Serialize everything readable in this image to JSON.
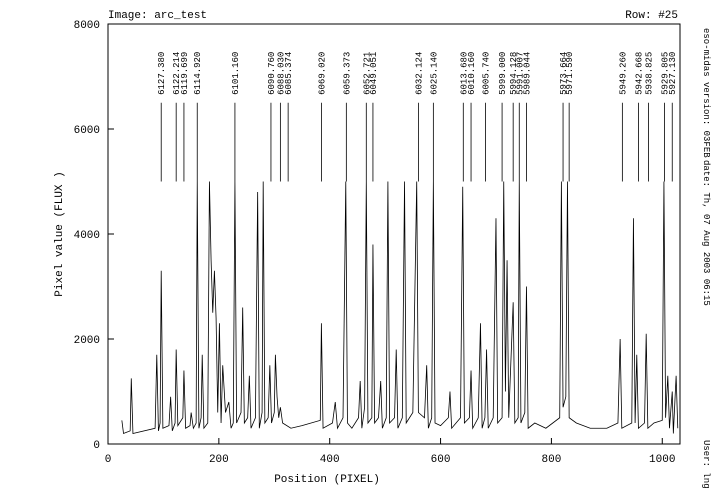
{
  "header": {
    "image": "Image: arc_test",
    "row": "Row: #25",
    "version": "eso-midas version: 03FEB",
    "date": "date: Th, 07 Aug 2003 06:15",
    "user": "User: lng"
  },
  "chart_data": {
    "type": "line",
    "x_label": "Position (PIXEL)",
    "y_label": "Pixel value (FLUX )",
    "xlim": [
      0,
      1032
    ],
    "xticks": [
      0,
      200,
      400,
      600,
      800,
      1000
    ],
    "ylim": [
      0,
      8000
    ],
    "yticks": [
      0,
      2000,
      4000,
      6000,
      8000
    ],
    "color": "#000000",
    "x": [
      25,
      28,
      40,
      42,
      45,
      85,
      88,
      91,
      94,
      96,
      99,
      110,
      113,
      116,
      121,
      123,
      126,
      135,
      137,
      140,
      148,
      150,
      154,
      159,
      161,
      164,
      168,
      170,
      173,
      180,
      183,
      186,
      189,
      192,
      195,
      198,
      201,
      204,
      207,
      212,
      218,
      222,
      226,
      229,
      232,
      240,
      243,
      246,
      252,
      255,
      258,
      266,
      270,
      273,
      278,
      280,
      283,
      289,
      292,
      295,
      300,
      302,
      305,
      308,
      311,
      315,
      330,
      350,
      383,
      385,
      388,
      405,
      410,
      414,
      424,
      429,
      432,
      440,
      452,
      455,
      458,
      463,
      466,
      469,
      476,
      478,
      481,
      488,
      492,
      495,
      502,
      505,
      508,
      517,
      520,
      523,
      531,
      535,
      538,
      550,
      557,
      560,
      571,
      575,
      578,
      584,
      587,
      590,
      600,
      614,
      617,
      620,
      636,
      640,
      643,
      652,
      655,
      658,
      668,
      672,
      675,
      680,
      683,
      686,
      695,
      700,
      703,
      711,
      714,
      717,
      720,
      723,
      731,
      734,
      740,
      742,
      745,
      752,
      755,
      758,
      770,
      790,
      815,
      818,
      821,
      826,
      829,
      832,
      845,
      870,
      900,
      920,
      924,
      927,
      945,
      948,
      951,
      954,
      957,
      968,
      971,
      974,
      985,
      1000,
      1003,
      1006,
      1010,
      1013,
      1018,
      1020,
      1025,
      1028
    ],
    "values": [
      450,
      200,
      250,
      1250,
      200,
      300,
      1700,
      250,
      400,
      3300,
      300,
      350,
      900,
      250,
      400,
      1800,
      350,
      500,
      1400,
      300,
      350,
      600,
      300,
      400,
      5000,
      300,
      500,
      1700,
      300,
      400,
      5000,
      3500,
      2500,
      3300,
      2400,
      600,
      2300,
      400,
      1500,
      600,
      800,
      300,
      400,
      5000,
      400,
      600,
      2600,
      400,
      500,
      1300,
      300,
      500,
      4800,
      300,
      600,
      5000,
      400,
      500,
      1500,
      400,
      600,
      1700,
      900,
      500,
      700,
      400,
      300,
      350,
      450,
      2300,
      300,
      400,
      800,
      300,
      500,
      5000,
      400,
      300,
      500,
      1200,
      300,
      700,
      5000,
      400,
      500,
      3800,
      400,
      500,
      1200,
      300,
      500,
      5000,
      400,
      500,
      1800,
      300,
      500,
      5000,
      400,
      600,
      5000,
      600,
      500,
      1500,
      300,
      500,
      5000,
      400,
      350,
      500,
      1000,
      300,
      500,
      4900,
      400,
      500,
      1400,
      300,
      500,
      2300,
      300,
      500,
      1800,
      300,
      500,
      4300,
      400,
      500,
      5000,
      1000,
      3500,
      500,
      2700,
      400,
      500,
      5000,
      400,
      600,
      3000,
      300,
      400,
      300,
      500,
      5000,
      700,
      900,
      5000,
      500,
      400,
      300,
      300,
      400,
      2000,
      300,
      400,
      4300,
      400,
      1700,
      300,
      400,
      2100,
      300,
      400,
      450,
      5000,
      500,
      1300,
      300,
      1000,
      200,
      1300,
      300
    ],
    "annotations": [
      {
        "label": "6127.380",
        "x": 96
      },
      {
        "label": "6122.214",
        "x": 123
      },
      {
        "label": "6119.699",
        "x": 137
      },
      {
        "label": "6114.920",
        "x": 161
      },
      {
        "label": "6101.160",
        "x": 229
      },
      {
        "label": "6090.760",
        "x": 294
      },
      {
        "label": "6088.030",
        "x": 311
      },
      {
        "label": "6085.374",
        "x": 325
      },
      {
        "label": "6069.020",
        "x": 385
      },
      {
        "label": "6059.373",
        "x": 430
      },
      {
        "label": "6052.721",
        "x": 466
      },
      {
        "label": "6049.051",
        "x": 478
      },
      {
        "label": "6032.124",
        "x": 560
      },
      {
        "label": "6025.140",
        "x": 587
      },
      {
        "label": "6013.680",
        "x": 641
      },
      {
        "label": "6010.160",
        "x": 655
      },
      {
        "label": "6005.740",
        "x": 681
      },
      {
        "label": "5999.000",
        "x": 711
      },
      {
        "label": "5994.128",
        "x": 731
      },
      {
        "label": "5991.007",
        "x": 742
      },
      {
        "label": "5989.044",
        "x": 755
      },
      {
        "label": "5973.664",
        "x": 821
      },
      {
        "label": "5971.590",
        "x": 832
      },
      {
        "label": "5949.260",
        "x": 928
      },
      {
        "label": "5942.668",
        "x": 957
      },
      {
        "label": "5938.825",
        "x": 975
      },
      {
        "label": "5929.805",
        "x": 1004
      },
      {
        "label": "5927.130",
        "x": 1018
      }
    ]
  }
}
